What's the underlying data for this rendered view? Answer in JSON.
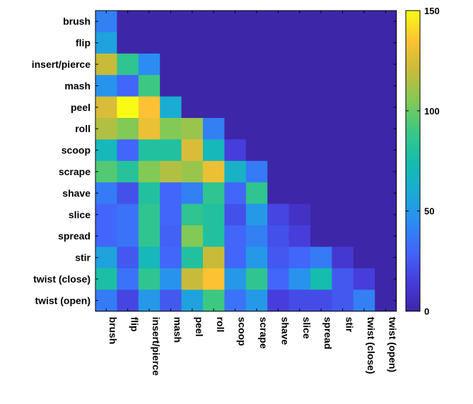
{
  "chart_data": {
    "type": "heatmap",
    "title": "",
    "xlabel": "",
    "ylabel": "",
    "rows": [
      "brush",
      "flip",
      "insert/pierce",
      "mash",
      "peel",
      "roll",
      "scoop",
      "scrape",
      "shave",
      "slice",
      "spread",
      "stir",
      "twist (close)",
      "twist (open)"
    ],
    "columns": [
      "brush",
      "flip",
      "insert/pierce",
      "mash",
      "peel",
      "roll",
      "scoop",
      "scrape",
      "shave",
      "slice",
      "spread",
      "stir",
      "twist (close)",
      "twist (open)"
    ],
    "values": [
      [
        40,
        0,
        0,
        0,
        0,
        0,
        0,
        0,
        0,
        0,
        0,
        0,
        0,
        0
      ],
      [
        55,
        0,
        0,
        0,
        0,
        0,
        0,
        0,
        0,
        0,
        0,
        0,
        0,
        0
      ],
      [
        120,
        85,
        45,
        0,
        0,
        0,
        0,
        0,
        0,
        0,
        0,
        0,
        0,
        0
      ],
      [
        48,
        30,
        90,
        0,
        0,
        0,
        0,
        0,
        0,
        0,
        0,
        0,
        0,
        0
      ],
      [
        125,
        150,
        135,
        60,
        0,
        0,
        0,
        0,
        0,
        0,
        0,
        0,
        0,
        0
      ],
      [
        115,
        105,
        130,
        105,
        110,
        40,
        0,
        0,
        0,
        0,
        0,
        0,
        0,
        0
      ],
      [
        70,
        30,
        80,
        80,
        125,
        70,
        15,
        0,
        0,
        0,
        0,
        0,
        0,
        0
      ],
      [
        95,
        82,
        105,
        115,
        110,
        130,
        65,
        38,
        0,
        0,
        0,
        0,
        0,
        0
      ],
      [
        38,
        22,
        80,
        30,
        40,
        85,
        30,
        85,
        0,
        0,
        0,
        0,
        0,
        0
      ],
      [
        30,
        35,
        85,
        30,
        85,
        80,
        22,
        50,
        18,
        8,
        0,
        0,
        0,
        0
      ],
      [
        30,
        35,
        85,
        28,
        105,
        80,
        30,
        40,
        22,
        15,
        0,
        0,
        0,
        0
      ],
      [
        55,
        25,
        70,
        30,
        80,
        120,
        30,
        50,
        25,
        30,
        38,
        12,
        0,
        0
      ],
      [
        78,
        35,
        85,
        48,
        120,
        135,
        50,
        85,
        30,
        48,
        75,
        25,
        15,
        0
      ],
      [
        38,
        18,
        50,
        25,
        55,
        90,
        35,
        50,
        15,
        20,
        20,
        25,
        40,
        0
      ]
    ],
    "colorbar": {
      "min": 0,
      "max": 150,
      "ticks": [
        0,
        50,
        100,
        150
      ],
      "colormap": "parula"
    }
  }
}
